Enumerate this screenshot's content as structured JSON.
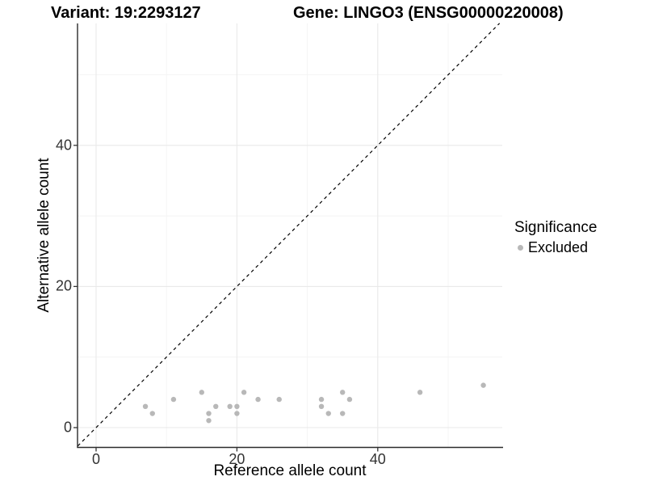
{
  "chart_data": {
    "type": "scatter",
    "titles": {
      "variant": "Variant: 19:2293127",
      "gene": "Gene: LINGO3 (ENSG00000220008)"
    },
    "xlabel": "Reference allele count",
    "ylabel": "Alternative allele count",
    "xlim": [
      -2.7,
      57.7
    ],
    "ylim": [
      -2.8,
      57.3
    ],
    "grid": true,
    "x_ticks": [
      {
        "value": 0,
        "label": "0"
      },
      {
        "value": 20,
        "label": "20"
      },
      {
        "value": 40,
        "label": "40"
      }
    ],
    "y_ticks": [
      {
        "value": 0,
        "label": "0"
      },
      {
        "value": 20,
        "label": "20"
      },
      {
        "value": 40,
        "label": "40"
      }
    ],
    "x_minor_gridlines": [
      10,
      30,
      50
    ],
    "y_minor_gridlines": [
      10,
      30,
      50
    ],
    "identity_line": {
      "equation": "y = x",
      "style": "dashed",
      "color": "#000000"
    },
    "legend": {
      "title": "Significance",
      "position": "right",
      "items": [
        {
          "label": "Excluded",
          "color": "#b8b8b8"
        }
      ]
    },
    "series": [
      {
        "name": "Excluded",
        "marker": "circle",
        "color": "#b8b8b8",
        "points": [
          [
            7,
            3
          ],
          [
            8,
            2
          ],
          [
            11,
            4
          ],
          [
            15,
            5
          ],
          [
            16,
            1
          ],
          [
            16,
            2
          ],
          [
            17,
            3
          ],
          [
            19,
            3
          ],
          [
            20,
            2
          ],
          [
            20,
            3
          ],
          [
            21,
            5
          ],
          [
            23,
            4
          ],
          [
            26,
            4
          ],
          [
            32,
            3
          ],
          [
            32,
            4
          ],
          [
            33,
            2
          ],
          [
            35,
            2
          ],
          [
            35,
            5
          ],
          [
            36,
            4
          ],
          [
            46,
            5
          ],
          [
            55,
            6
          ]
        ]
      }
    ]
  },
  "colors": {
    "background": "#ffffff",
    "grid_major": "#e9e9e9",
    "grid_minor": "#f4f4f4",
    "axis_line": "#2b2b2b",
    "tick_mark": "#333333",
    "tick_text": "#333333",
    "point": "#b8b8b8",
    "identity_line": "#000000"
  }
}
